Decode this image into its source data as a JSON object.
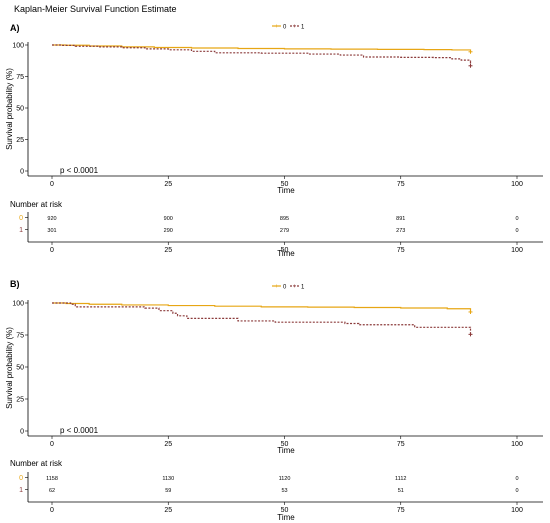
{
  "title": "Kaplan-Meier Survival Function Estimate",
  "colors": {
    "group_0": "#E7A614",
    "group_1": "#8B3A3A"
  },
  "chart_data": [
    {
      "type": "line",
      "panel_label": "A)",
      "title": "",
      "xlabel": "Time",
      "ylabel": "Survival probability (%)",
      "xlim": [
        0,
        100
      ],
      "ylim": [
        0,
        100
      ],
      "x_ticks": [
        "0",
        "25",
        "50",
        "75",
        "100"
      ],
      "y_ticks": [
        "0",
        "25",
        "50",
        "75",
        "100"
      ],
      "legend_position": "top-center",
      "pvalue_text": "p < 0.0001",
      "grid": false,
      "step": true,
      "series": [
        {
          "name": "0",
          "color": "#E7A614",
          "dashed": false,
          "points": [
            [
              0,
              100
            ],
            [
              3,
              99.8
            ],
            [
              8,
              99.2
            ],
            [
              15,
              98.5
            ],
            [
              22,
              98
            ],
            [
              30,
              97.6
            ],
            [
              40,
              97.2
            ],
            [
              50,
              96.9
            ],
            [
              60,
              96.7
            ],
            [
              70,
              96.5
            ],
            [
              80,
              96.3
            ],
            [
              86,
              96.1
            ],
            [
              90,
              95.8
            ]
          ],
          "censor_end": 94.6
        },
        {
          "name": "1",
          "color": "#8B3A3A",
          "dashed": true,
          "points": [
            [
              0,
              100
            ],
            [
              2,
              99.7
            ],
            [
              5,
              99
            ],
            [
              10,
              98.5
            ],
            [
              15,
              97.8
            ],
            [
              20,
              96.9
            ],
            [
              25,
              96.2
            ],
            [
              30,
              95
            ],
            [
              35,
              93.8
            ],
            [
              45,
              93.5
            ],
            [
              55,
              92.8
            ],
            [
              62,
              92
            ],
            [
              67,
              90.5
            ],
            [
              75,
              90.2
            ],
            [
              82,
              90
            ],
            [
              86,
              89
            ],
            [
              88,
              88
            ],
            [
              90,
              87
            ]
          ],
          "censor_end": 83.5
        }
      ],
      "risk_table": {
        "title": "Number at risk",
        "xlabel": "Time",
        "times": [
          0,
          25,
          50,
          75,
          100
        ],
        "x_ticks": [
          "0",
          "25",
          "50",
          "75",
          "100"
        ],
        "rows": [
          {
            "label": "0",
            "values": [
              "920",
              "900",
              "895",
              "891",
              "0"
            ]
          },
          {
            "label": "1",
            "values": [
              "301",
              "290",
              "279",
              "273",
              "0"
            ]
          }
        ]
      }
    },
    {
      "type": "line",
      "panel_label": "B)",
      "title": "",
      "xlabel": "Time",
      "ylabel": "Survival probability (%)",
      "xlim": [
        0,
        100
      ],
      "ylim": [
        0,
        100
      ],
      "x_ticks": [
        "0",
        "25",
        "50",
        "75",
        "100"
      ],
      "y_ticks": [
        "0",
        "25",
        "50",
        "75",
        "100"
      ],
      "legend_position": "top-center",
      "pvalue_text": "p < 0.0001",
      "grid": false,
      "step": true,
      "series": [
        {
          "name": "0",
          "color": "#E7A614",
          "dashed": false,
          "points": [
            [
              0,
              100
            ],
            [
              3,
              99.6
            ],
            [
              8,
              99
            ],
            [
              15,
              98.5
            ],
            [
              25,
              98
            ],
            [
              35,
              97.5
            ],
            [
              45,
              97
            ],
            [
              55,
              96.8
            ],
            [
              65,
              96.5
            ],
            [
              75,
              96.1
            ],
            [
              85,
              95.5
            ],
            [
              90,
              94.5
            ]
          ],
          "censor_end": 93
        },
        {
          "name": "1",
          "color": "#8B3A3A",
          "dashed": true,
          "points": [
            [
              0,
              100
            ],
            [
              4,
              99
            ],
            [
              5,
              97
            ],
            [
              20,
              96
            ],
            [
              23,
              94
            ],
            [
              26,
              92
            ],
            [
              27,
              90
            ],
            [
              29,
              88
            ],
            [
              40,
              86
            ],
            [
              48,
              85
            ],
            [
              63,
              84
            ],
            [
              66,
              83
            ],
            [
              78,
              81
            ],
            [
              87,
              81
            ],
            [
              90,
              80
            ]
          ],
          "censor_end": 75.5
        }
      ],
      "risk_table": {
        "title": "Number at risk",
        "xlabel": "Time",
        "times": [
          0,
          25,
          50,
          75,
          100
        ],
        "x_ticks": [
          "0",
          "25",
          "50",
          "75",
          "100"
        ],
        "rows": [
          {
            "label": "0",
            "values": [
              "1158",
              "1130",
              "1120",
              "1112",
              "0"
            ]
          },
          {
            "label": "1",
            "values": [
              "62",
              "59",
              "53",
              "51",
              "0"
            ]
          }
        ]
      }
    }
  ]
}
